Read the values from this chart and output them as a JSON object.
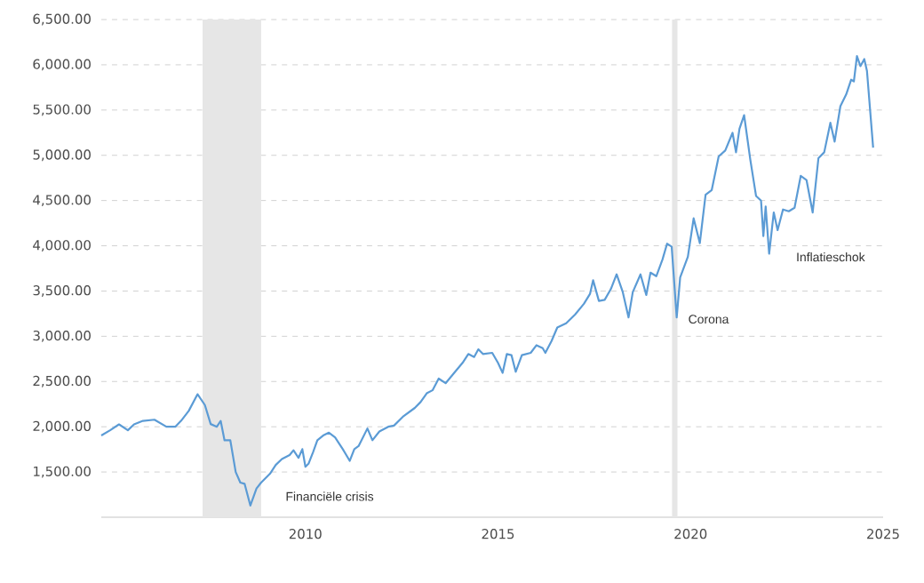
{
  "chart_data": {
    "type": "line",
    "xlim": [
      2004.7,
      2025
    ],
    "xticks": [
      2010,
      2015,
      2020,
      2025
    ],
    "ylim": [
      1000,
      6500
    ],
    "yticks": [
      {
        "value": 1500,
        "label": "1,500.00"
      },
      {
        "value": 2000,
        "label": "2,000.00"
      },
      {
        "value": 2500,
        "label": "2,500.00"
      },
      {
        "value": 3000,
        "label": "3,000.00"
      },
      {
        "value": 3500,
        "label": "3,500.00"
      },
      {
        "value": 4000,
        "label": "4,000.00"
      },
      {
        "value": 4500,
        "label": "4,500.00"
      },
      {
        "value": 5000,
        "label": "5,000.00"
      },
      {
        "value": 5500,
        "label": "5,500.00"
      },
      {
        "value": 6000,
        "label": "6,000.00"
      },
      {
        "value": 6500,
        "label": "6,500.00"
      }
    ],
    "grid": "y",
    "legend": false,
    "marker": "none",
    "line_style": "solid",
    "bands": [
      {
        "axis": "x",
        "from": 2007.33,
        "to": 2008.85,
        "color": "#e6e6e6"
      },
      {
        "axis": "x",
        "from": 2019.52,
        "to": 2019.66,
        "color": "#e6e6e6"
      }
    ],
    "annotations": [
      "Financiële crisis",
      "Corona",
      "Inflatieschok"
    ],
    "series": [
      {
        "color": "#5b9bd5",
        "x": [
          2004.7,
          2004.93,
          2005.16,
          2005.39,
          2005.55,
          2005.78,
          2006.08,
          2006.39,
          2006.62,
          2006.77,
          2006.97,
          2007.2,
          2007.39,
          2007.54,
          2007.7,
          2007.8,
          2007.9,
          2008.05,
          2008.19,
          2008.31,
          2008.42,
          2008.57,
          2008.73,
          2008.85,
          2009.08,
          2009.23,
          2009.39,
          2009.59,
          2009.69,
          2009.82,
          2009.92,
          2010.0,
          2010.08,
          2010.2,
          2010.31,
          2010.46,
          2010.61,
          2010.77,
          2010.97,
          2011.15,
          2011.27,
          2011.38,
          2011.61,
          2011.74,
          2011.92,
          2012.15,
          2012.3,
          2012.53,
          2012.84,
          2012.99,
          2013.15,
          2013.3,
          2013.46,
          2013.64,
          2013.84,
          2014.08,
          2014.23,
          2014.38,
          2014.49,
          2014.61,
          2014.85,
          2015.0,
          2015.12,
          2015.23,
          2015.35,
          2015.46,
          2015.62,
          2015.85,
          2016.0,
          2016.16,
          2016.23,
          2016.39,
          2016.54,
          2016.77,
          2017.0,
          2017.23,
          2017.39,
          2017.47,
          2017.62,
          2017.77,
          2017.93,
          2018.08,
          2018.24,
          2018.39,
          2018.5,
          2018.7,
          2018.85,
          2018.96,
          2019.11,
          2019.27,
          2019.39,
          2019.51,
          2019.64,
          2019.73,
          2019.93,
          2020.08,
          2020.24,
          2020.39,
          2020.55,
          2020.73,
          2020.9,
          2021.09,
          2021.18,
          2021.27,
          2021.39,
          2021.55,
          2021.7,
          2021.83,
          2021.89,
          2021.95,
          2022.04,
          2022.16,
          2022.26,
          2022.4,
          2022.55,
          2022.7,
          2022.86,
          2023.01,
          2023.17,
          2023.32,
          2023.47,
          2023.63,
          2023.74,
          2023.89,
          2024.04,
          2024.17,
          2024.24,
          2024.32,
          2024.41,
          2024.51,
          2024.58,
          2024.74
        ],
        "values": [
          1903,
          1961,
          2026,
          1961,
          2026,
          2065,
          2078,
          2000,
          2000,
          2065,
          2175,
          2360,
          2240,
          2030,
          2000,
          2065,
          1850,
          1850,
          1500,
          1383,
          1370,
          1130,
          1318,
          1383,
          1481,
          1578,
          1643,
          1688,
          1740,
          1656,
          1753,
          1558,
          1591,
          1721,
          1851,
          1903,
          1935,
          1883,
          1753,
          1623,
          1753,
          1786,
          1981,
          1851,
          1948,
          2000,
          2013,
          2110,
          2208,
          2273,
          2370,
          2403,
          2532,
          2481,
          2584,
          2706,
          2804,
          2771,
          2856,
          2804,
          2817,
          2706,
          2595,
          2804,
          2791,
          2608,
          2791,
          2817,
          2901,
          2869,
          2817,
          2947,
          3097,
          3143,
          3240,
          3358,
          3469,
          3619,
          3390,
          3403,
          3521,
          3684,
          3488,
          3208,
          3488,
          3684,
          3456,
          3703,
          3664,
          3847,
          4023,
          3990,
          3208,
          3651,
          3879,
          4303,
          4029,
          4564,
          4616,
          4988,
          5053,
          5248,
          5033,
          5294,
          5444,
          4955,
          4551,
          4499,
          4108,
          4434,
          3912,
          4368,
          4173,
          4401,
          4381,
          4420,
          4772,
          4727,
          4368,
          4968,
          5033,
          5359,
          5151,
          5542,
          5672,
          5835,
          5816,
          6096,
          5985,
          6063,
          5933,
          5085
        ]
      }
    ]
  }
}
